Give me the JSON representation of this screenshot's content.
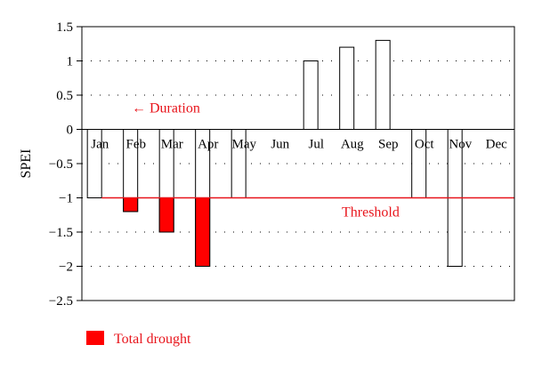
{
  "chart_data": {
    "type": "bar",
    "title": "",
    "xlabel": "",
    "ylabel": "SPEI",
    "categories": [
      "Jan",
      "Feb",
      "Mar",
      "Apr",
      "May",
      "Jun",
      "Jul",
      "Aug",
      "Sep",
      "Oct",
      "Nov",
      "Dec"
    ],
    "values": [
      -1.0,
      -1.2,
      -1.5,
      -2.0,
      -1.0,
      0.0,
      1.0,
      1.2,
      1.3,
      -1.0,
      -2.0,
      0.0
    ],
    "ylim": [
      -2.5,
      1.5
    ],
    "yticks": [
      1.5,
      1,
      0.5,
      0,
      -0.5,
      -1,
      -1.5,
      -2,
      -2.5
    ],
    "ytick_labels": [
      "1.5",
      "1",
      "0.5",
      "0",
      "−0.5",
      "−1",
      "−1.5",
      "−2",
      "−2.5"
    ],
    "grid": "horizontal dotted",
    "threshold": {
      "value": -1.0,
      "label": "Threshold",
      "color": "#e8141b"
    },
    "total_drought": [
      {
        "category": "Feb",
        "from": -1.0,
        "to": -1.2
      },
      {
        "category": "Mar",
        "from": -1.0,
        "to": -1.5
      },
      {
        "category": "Apr",
        "from": -1.0,
        "to": -2.0
      }
    ],
    "duration_annotation": {
      "label": "← Duration",
      "color": "#e8141b"
    },
    "legend": {
      "position": "bottom-left",
      "entries": [
        {
          "label": "Total drought",
          "color": "#ff0000"
        }
      ]
    },
    "colors": {
      "bar_fill": "#ffffff",
      "bar_stroke": "#000000",
      "drought_fill": "#ff0000",
      "threshold": "#e8141b"
    }
  }
}
